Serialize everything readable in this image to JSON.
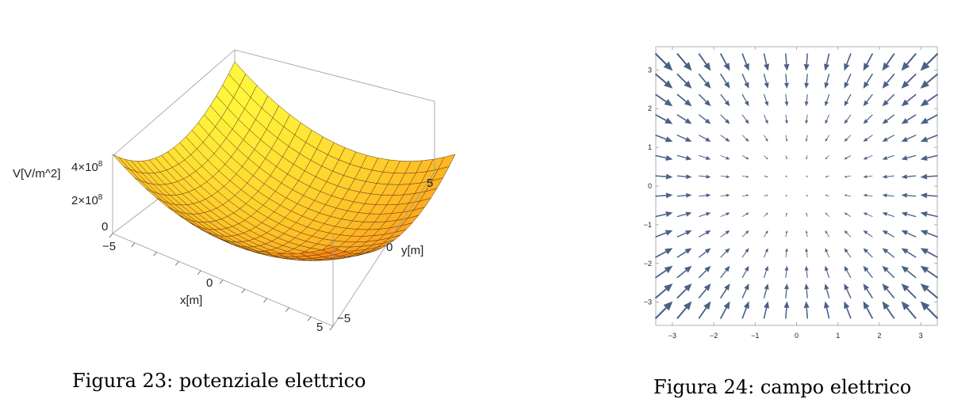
{
  "figures": [
    {
      "caption": "Figura 23: potenziale elettrico",
      "chart_data": {
        "type": "surface3d",
        "function": "V proportional to x^2 + y^2",
        "x_axis": {
          "label": "x[m]",
          "range": [
            -5,
            5
          ],
          "ticks": [
            "−5",
            "0",
            "5"
          ]
        },
        "y_axis": {
          "label": "y[m]",
          "range": [
            -5,
            5
          ],
          "ticks": [
            "−5",
            "0",
            "5"
          ]
        },
        "z_axis": {
          "label": "V[V/m^2]",
          "range": [
            0,
            400000000
          ],
          "ticks": [
            "0",
            "2×10",
            "4×10"
          ],
          "tick_exponent": "8"
        },
        "grid_lines": 20,
        "colormap": "yellow-orange"
      }
    },
    {
      "caption": "Figura 24: campo elettrico",
      "chart_data": {
        "type": "vector_field",
        "field": "E = -(x, y) (pointing towards the origin)",
        "x_range": [
          -3.4,
          3.4
        ],
        "y_range": [
          -3.6,
          3.6
        ],
        "grid": {
          "x_min": -3.2,
          "x_max": 3.2,
          "y_min": -3.2,
          "y_max": 3.2,
          "n": 14
        },
        "x_ticks": [
          "−3",
          "−2",
          "−1",
          "0",
          "1",
          "2",
          "3"
        ],
        "y_ticks": [
          "3",
          "2",
          "1",
          "0",
          "−1",
          "−2",
          "−3"
        ],
        "arrow_color": "#4a6186"
      }
    }
  ]
}
